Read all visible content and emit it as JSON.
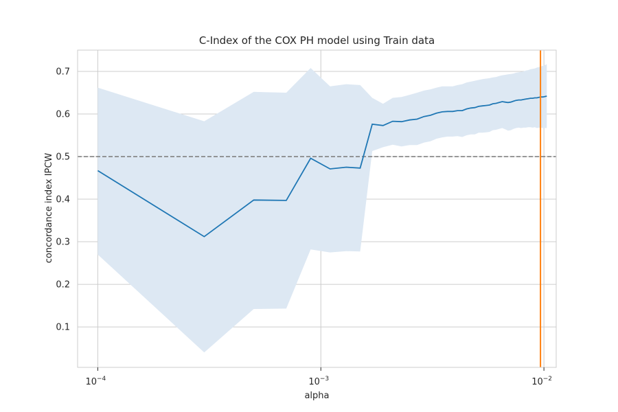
{
  "chart_data": {
    "type": "line",
    "title": "C-Index of the COX PH model using Train data",
    "xlabel": "alpha",
    "ylabel": "concordance index IPCW",
    "xscale": "log",
    "xlim": [
      8.12e-05,
      0.01135
    ],
    "ylim": [
      0.005,
      0.75
    ],
    "grid": true,
    "legend": "none",
    "x_tick_values": [
      0.0001,
      0.001,
      0.01
    ],
    "x_tick_labels": [
      {
        "base": "10",
        "exp": "−4"
      },
      {
        "base": "10",
        "exp": "−3"
      },
      {
        "base": "10",
        "exp": "−2"
      }
    ],
    "y_ticks": [
      0.1,
      0.2,
      0.3,
      0.4,
      0.5,
      0.6,
      0.7
    ],
    "y_tick_labels": [
      "0.1",
      "0.2",
      "0.3",
      "0.4",
      "0.5",
      "0.6",
      "0.7"
    ],
    "colors": {
      "line": "#1f77b4",
      "band": "#dde8f3",
      "reference": "#808080",
      "vline": "#ff7f0e",
      "grid": "#cccccc"
    },
    "series": [
      {
        "x": [
          0.0001,
          0.0003,
          0.0005,
          0.0007,
          0.0009,
          0.0011,
          0.0013,
          0.0015,
          0.0017,
          0.0019,
          0.0021,
          0.0023,
          0.0025,
          0.0027,
          0.0029,
          0.0031,
          0.0033,
          0.0035,
          0.0037,
          0.0039,
          0.0041,
          0.0043,
          0.0045,
          0.0047,
          0.0049,
          0.0051,
          0.0053,
          0.0055,
          0.0057,
          0.0059,
          0.0061,
          0.0063,
          0.0065,
          0.0067,
          0.0069,
          0.0071,
          0.0073,
          0.0075,
          0.0077,
          0.0079,
          0.0081,
          0.0083,
          0.0085,
          0.0087,
          0.0089,
          0.0091,
          0.0093,
          0.0095,
          0.0097,
          0.0099,
          0.0101,
          0.0103
        ],
        "mean": [
          0.467,
          0.312,
          0.398,
          0.397,
          0.496,
          0.471,
          0.475,
          0.473,
          0.576,
          0.573,
          0.583,
          0.582,
          0.586,
          0.588,
          0.594,
          0.597,
          0.602,
          0.605,
          0.606,
          0.606,
          0.608,
          0.608,
          0.612,
          0.614,
          0.615,
          0.618,
          0.619,
          0.62,
          0.621,
          0.624,
          0.625,
          0.627,
          0.629,
          0.628,
          0.627,
          0.628,
          0.63,
          0.632,
          0.633,
          0.633,
          0.634,
          0.635,
          0.636,
          0.637,
          0.637,
          0.638,
          0.638,
          0.639,
          0.64,
          0.64,
          0.641,
          0.642
        ],
        "upper": [
          0.662,
          0.583,
          0.652,
          0.65,
          0.708,
          0.665,
          0.67,
          0.668,
          0.638,
          0.624,
          0.638,
          0.64,
          0.645,
          0.65,
          0.655,
          0.658,
          0.662,
          0.665,
          0.665,
          0.665,
          0.668,
          0.67,
          0.674,
          0.676,
          0.678,
          0.68,
          0.682,
          0.683,
          0.684,
          0.686,
          0.687,
          0.689,
          0.691,
          0.692,
          0.693,
          0.694,
          0.695,
          0.697,
          0.698,
          0.699,
          0.7,
          0.702,
          0.703,
          0.705,
          0.706,
          0.707,
          0.709,
          0.71,
          0.712,
          0.713,
          0.715,
          0.717
        ],
        "lower": [
          0.27,
          0.04,
          0.142,
          0.143,
          0.282,
          0.275,
          0.278,
          0.277,
          0.513,
          0.522,
          0.528,
          0.524,
          0.527,
          0.527,
          0.533,
          0.536,
          0.542,
          0.545,
          0.547,
          0.547,
          0.548,
          0.546,
          0.55,
          0.552,
          0.552,
          0.556,
          0.556,
          0.557,
          0.558,
          0.562,
          0.563,
          0.565,
          0.567,
          0.564,
          0.561,
          0.562,
          0.565,
          0.567,
          0.568,
          0.567,
          0.568,
          0.568,
          0.569,
          0.569,
          0.568,
          0.569,
          0.567,
          0.568,
          0.568,
          0.567,
          0.567,
          0.567
        ]
      }
    ],
    "reference_line_y": 0.5,
    "vertical_line_x": 0.00965
  }
}
